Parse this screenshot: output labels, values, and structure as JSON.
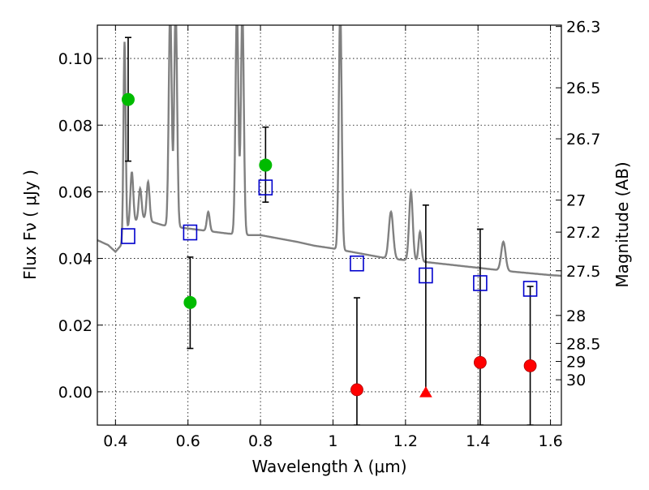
{
  "chart_data": {
    "type": "scatter",
    "xlabel": "Wavelength  λ (μm)",
    "ylabel": "Flux  Fν  ( μJy )",
    "y2label": "Magnitude (AB)",
    "xlim": [
      0.35,
      1.63
    ],
    "ylim": [
      -0.01,
      0.11
    ],
    "grid": true,
    "x_ticks": [
      0.4,
      0.6,
      0.8,
      1.0,
      1.2,
      1.4,
      1.6
    ],
    "x_tick_labels": [
      "0.4",
      "0.6",
      "0.8",
      "1",
      "1.2",
      "1.4",
      "1.6"
    ],
    "y_ticks": [
      0.0,
      0.02,
      0.04,
      0.06,
      0.08,
      0.1
    ],
    "y_tick_labels": [
      "0.00",
      "0.02",
      "0.04",
      "0.06",
      "0.08",
      "0.10"
    ],
    "mag_ticks": [
      {
        "label": "26.3",
        "flux": 0.1096
      },
      {
        "label": "26.5",
        "flux": 0.0912
      },
      {
        "label": "26.7",
        "flux": 0.0759
      },
      {
        "label": "27",
        "flux": 0.0575
      },
      {
        "label": "27.2",
        "flux": 0.0479
      },
      {
        "label": "27.5",
        "flux": 0.0363
      },
      {
        "label": "28",
        "flux": 0.0229
      },
      {
        "label": "28.5",
        "flux": 0.0145
      },
      {
        "label": "29",
        "flux": 0.0091
      },
      {
        "label": "30",
        "flux": 0.0036
      }
    ],
    "detections": [
      {
        "x": 0.435,
        "y": 0.0877,
        "err_lo": 0.0692,
        "err_hi": 0.1063,
        "color": "#00bb00"
      },
      {
        "x": 0.606,
        "y": 0.0268,
        "err_lo": 0.013,
        "err_hi": 0.0404,
        "color": "#00bb00"
      },
      {
        "x": 0.814,
        "y": 0.068,
        "err_lo": 0.0569,
        "err_hi": 0.0794,
        "color": "#00bb00"
      }
    ],
    "non_detections": [
      {
        "x": 1.066,
        "y": 0.0006,
        "err_lo": -0.01,
        "err_hi": 0.0282,
        "color": "#ff0000",
        "marker": "circle"
      },
      {
        "x": 1.256,
        "y": -0.0003,
        "err_lo": -0.0003,
        "err_hi": 0.056,
        "color": "#ff0000",
        "marker": "triangle"
      },
      {
        "x": 1.406,
        "y": 0.0088,
        "err_lo": -0.01,
        "err_hi": 0.0488,
        "color": "#ff0000",
        "marker": "circle"
      },
      {
        "x": 1.544,
        "y": 0.0078,
        "err_lo": -0.01,
        "err_hi": 0.0316,
        "color": "#ff0000",
        "marker": "circle"
      }
    ],
    "model_photometry": {
      "color": "#0000cc",
      "points": [
        {
          "x": 0.435,
          "y": 0.0467
        },
        {
          "x": 0.606,
          "y": 0.0478
        },
        {
          "x": 0.814,
          "y": 0.0613
        },
        {
          "x": 1.066,
          "y": 0.0385
        },
        {
          "x": 1.256,
          "y": 0.0349
        },
        {
          "x": 1.406,
          "y": 0.0326
        },
        {
          "x": 1.544,
          "y": 0.0309
        }
      ]
    },
    "model_spectrum": {
      "color": "#808080",
      "continuum": [
        [
          0.35,
          0.0455
        ],
        [
          0.38,
          0.044
        ],
        [
          0.4,
          0.042
        ],
        [
          0.42,
          0.0445
        ],
        [
          0.43,
          0.0485
        ],
        [
          0.45,
          0.051
        ],
        [
          0.48,
          0.052
        ],
        [
          0.5,
          0.051
        ],
        [
          0.53,
          0.05
        ],
        [
          0.56,
          0.0495
        ],
        [
          0.6,
          0.049
        ],
        [
          0.65,
          0.0483
        ],
        [
          0.7,
          0.0476
        ],
        [
          0.75,
          0.047
        ],
        [
          0.8,
          0.047
        ],
        [
          0.85,
          0.046
        ],
        [
          0.9,
          0.045
        ],
        [
          0.95,
          0.0438
        ],
        [
          1.0,
          0.043
        ],
        [
          1.05,
          0.042
        ],
        [
          1.1,
          0.041
        ],
        [
          1.15,
          0.04
        ],
        [
          1.2,
          0.0395
        ],
        [
          1.25,
          0.039
        ],
        [
          1.3,
          0.0384
        ],
        [
          1.35,
          0.0378
        ],
        [
          1.4,
          0.0372
        ],
        [
          1.45,
          0.0366
        ],
        [
          1.5,
          0.036
        ],
        [
          1.55,
          0.0355
        ],
        [
          1.6,
          0.035
        ],
        [
          1.63,
          0.0348
        ]
      ],
      "lines": [
        {
          "x": 0.425,
          "peak": 0.105,
          "width": 0.003
        },
        {
          "x": 0.445,
          "peak": 0.066,
          "width": 0.004
        },
        {
          "x": 0.468,
          "peak": 0.061,
          "width": 0.004
        },
        {
          "x": 0.49,
          "peak": 0.063,
          "width": 0.004
        },
        {
          "x": 0.551,
          "peak": 0.115,
          "width": 0.004
        },
        {
          "x": 0.566,
          "peak": 0.115,
          "width": 0.004
        },
        {
          "x": 0.656,
          "peak": 0.054,
          "width": 0.004
        },
        {
          "x": 0.735,
          "peak": 0.115,
          "width": 0.004
        },
        {
          "x": 0.75,
          "peak": 0.115,
          "width": 0.004
        },
        {
          "x": 1.02,
          "peak": 0.115,
          "width": 0.004
        },
        {
          "x": 1.16,
          "peak": 0.054,
          "width": 0.006
        },
        {
          "x": 1.215,
          "peak": 0.06,
          "width": 0.005
        },
        {
          "x": 1.24,
          "peak": 0.048,
          "width": 0.004
        },
        {
          "x": 1.47,
          "peak": 0.045,
          "width": 0.006
        }
      ]
    }
  }
}
